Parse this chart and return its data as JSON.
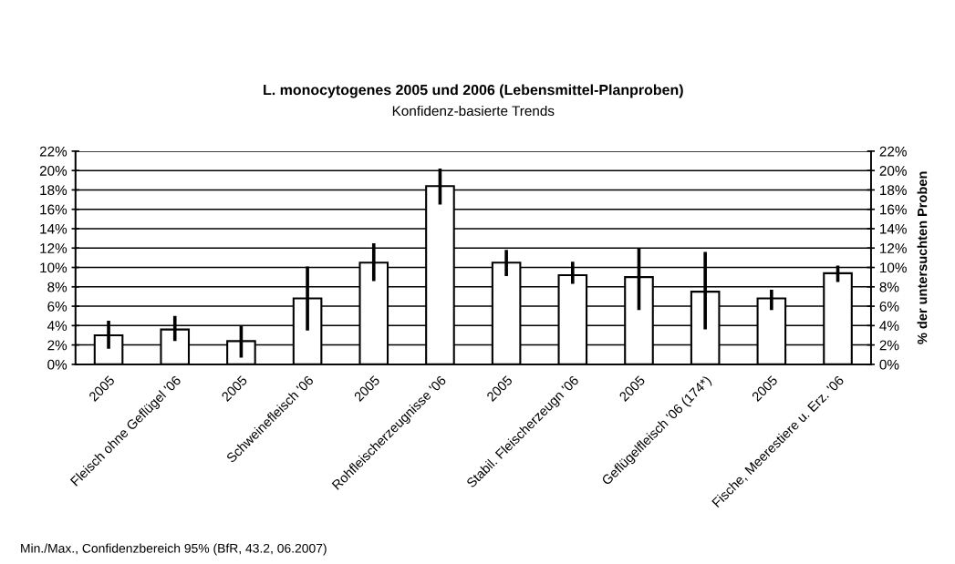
{
  "chart_data": {
    "type": "bar",
    "title": "L. monocytogenes 2005 und 2006 (Lebensmittel-Planproben)",
    "subtitle": "Konfidenz-basierte Trends",
    "y2label": "% der untersuchten Proben",
    "annotations": [
      "Min./Max., Confidenzbereich 95% (BfR, 43.2, 06.2007)"
    ],
    "categories": [
      "2005",
      "Fleisch ohne Geflügel '06",
      "2005",
      "Schweinefleisch '06",
      "2005",
      "Rohfleischerzeugnisse '06",
      "2005",
      "Stabil. Fleischerzeugn '06",
      "2005",
      "Geflügelfleisch '06 (174*)",
      "2005",
      "Fische, Meerestiere u. Erz. '06"
    ],
    "values": [
      3.0,
      3.6,
      2.4,
      6.8,
      10.5,
      18.4,
      10.5,
      9.2,
      9.0,
      7.5,
      6.8,
      9.4
    ],
    "errors": [
      [
        1.6,
        4.5
      ],
      [
        2.4,
        5.0
      ],
      [
        0.7,
        4.0
      ],
      [
        3.5,
        10.1
      ],
      [
        8.6,
        12.5
      ],
      [
        16.5,
        20.2
      ],
      [
        9.1,
        11.8
      ],
      [
        8.3,
        10.6
      ],
      [
        5.6,
        12.0
      ],
      [
        3.6,
        11.6
      ],
      [
        5.6,
        7.7
      ],
      [
        8.5,
        10.2
      ]
    ],
    "color": "#ffffff",
    "ylim": [
      0,
      22
    ],
    "yticks": [
      {
        "value": 0,
        "label": "0%"
      },
      {
        "value": 2,
        "label": "2%"
      },
      {
        "value": 4,
        "label": "4%"
      },
      {
        "value": 6,
        "label": "6%"
      },
      {
        "value": 8,
        "label": "8%"
      },
      {
        "value": 10,
        "label": "10%"
      },
      {
        "value": 12,
        "label": "12%"
      },
      {
        "value": 14,
        "label": "14%"
      },
      {
        "value": 16,
        "label": "16%"
      },
      {
        "value": 18,
        "label": "18%"
      },
      {
        "value": 20,
        "label": "20%"
      },
      {
        "value": 22,
        "label": "22%"
      }
    ],
    "y2lim": [
      0,
      22
    ],
    "y2ticks": [
      {
        "value": 0,
        "label": "0%"
      },
      {
        "value": 2,
        "label": "2%"
      },
      {
        "value": 4,
        "label": "4%"
      },
      {
        "value": 6,
        "label": "6%"
      },
      {
        "value": 8,
        "label": "8%"
      },
      {
        "value": 10,
        "label": "10%"
      },
      {
        "value": 12,
        "label": "12%"
      },
      {
        "value": 14,
        "label": "14%"
      },
      {
        "value": 16,
        "label": "16%"
      },
      {
        "value": 18,
        "label": "18%"
      },
      {
        "value": 20,
        "label": "20%"
      },
      {
        "value": 22,
        "label": "22%"
      }
    ],
    "grid": "y"
  }
}
